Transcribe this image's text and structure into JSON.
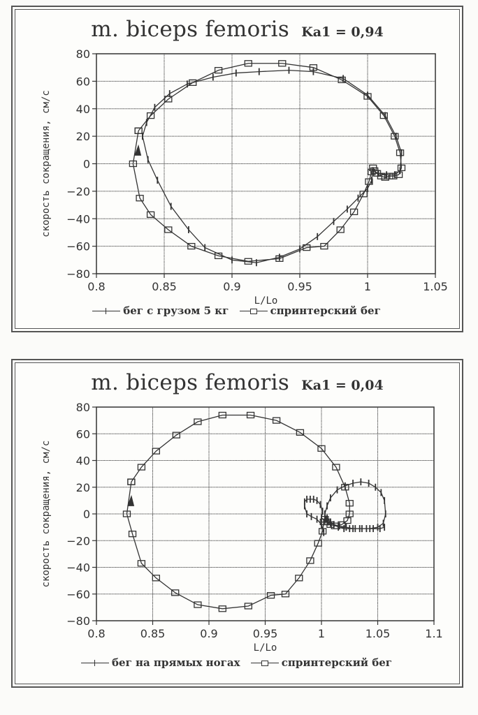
{
  "chart_data": [
    {
      "type": "line",
      "title": "m. biceps femoris",
      "annotation": "Ka1 = 0,94",
      "xlabel": "L/Lo",
      "ylabel": "скорость сокращения, см/с",
      "xlim": [
        0.8,
        1.05
      ],
      "ylim": [
        -80,
        80
      ],
      "x_ticks": [
        "0.8",
        "0.85",
        "0.9",
        "0.95",
        "1",
        "1.05"
      ],
      "y_ticks": [
        "80",
        "60",
        "40",
        "20",
        "0",
        "-20",
        "-40",
        "-60",
        "-80"
      ],
      "grid": true,
      "legend_position": "bottom",
      "series": [
        {
          "name": "бег с грузом 5 кг",
          "marker": "plus",
          "x": [
            0.834,
            0.837,
            0.843,
            0.854,
            0.867,
            0.886,
            0.903,
            0.92,
            0.942,
            0.96,
            0.982,
            1.0,
            1.013,
            1.021,
            1.025,
            1.024,
            1.02,
            1.014,
            1.008,
            1.004,
            1.003,
            1.0,
            0.993,
            0.985,
            0.975,
            0.963,
            0.95,
            0.935,
            0.918,
            0.9,
            0.88,
            0.868,
            0.855,
            0.845,
            0.838,
            0.834
          ],
          "y": [
            20,
            30,
            41,
            51,
            58,
            63,
            66,
            67,
            68,
            67,
            62,
            50,
            35,
            20,
            8,
            -5,
            -8,
            -8,
            -7,
            -5,
            -12,
            -18,
            -25,
            -33,
            -42,
            -53,
            -62,
            -68,
            -72,
            -70,
            -61,
            -48,
            -31,
            -12,
            3,
            20
          ]
        },
        {
          "name": "спринтерский бег",
          "marker": "square",
          "x": [
            0.831,
            0.84,
            0.853,
            0.871,
            0.89,
            0.912,
            0.937,
            0.96,
            0.981,
            1.0,
            1.012,
            1.02,
            1.024,
            1.025,
            1.023,
            1.019,
            1.016,
            1.013,
            1.01,
            1.007,
            1.005,
            1.004,
            1.003,
            1.001,
            0.997,
            0.99,
            0.98,
            0.968,
            0.955,
            0.935,
            0.912,
            0.89,
            0.87,
            0.853,
            0.84,
            0.832,
            0.827,
            0.831
          ],
          "y": [
            24,
            35,
            47,
            59,
            68,
            73,
            73,
            70,
            61,
            49,
            35,
            20,
            8,
            -3,
            -8,
            -9,
            -9,
            -10,
            -9,
            -7,
            -5,
            -3,
            -6,
            -13,
            -22,
            -35,
            -48,
            -60,
            -61,
            -69,
            -71,
            -67,
            -60,
            -48,
            -37,
            -25,
            0,
            24
          ]
        }
      ]
    },
    {
      "type": "line",
      "title": "m. biceps femoris",
      "annotation": "Ka1 = 0,04",
      "xlabel": "L/Lo",
      "ylabel": "скорость сокращения, см/с",
      "xlim": [
        0.8,
        1.1
      ],
      "ylim": [
        -80,
        80
      ],
      "x_ticks": [
        "0.8",
        "0.85",
        "0.9",
        "0.95",
        "1",
        "1.05",
        "1.1"
      ],
      "y_ticks": [
        "80",
        "60",
        "40",
        "20",
        "0",
        "-20",
        "-40",
        "-60",
        "-80"
      ],
      "grid": true,
      "legend_position": "bottom",
      "series": [
        {
          "name": "бег на прямых ногах",
          "marker": "plus",
          "x": [
            1.002,
            1.0,
            0.996,
            0.991,
            0.987,
            0.985,
            0.985,
            0.987,
            0.99,
            0.993,
            0.996,
            0.999,
            1.001,
            1.0,
            1.003,
            1.005,
            1.008,
            1.011,
            1.015,
            1.02,
            1.025,
            1.03,
            1.036,
            1.043,
            1.05,
            1.055,
            1.057,
            1.056,
            1.053,
            1.048,
            1.042,
            1.035,
            1.028,
            1.021,
            1.014,
            1.008,
            1.005,
            1.003,
            1.004,
            1.006,
            1.008,
            1.011,
            1.016,
            1.022,
            1.028,
            1.034,
            1.04,
            1.046,
            1.052,
            1.056
          ],
          "y": [
            -14,
            -8,
            -4,
            -2,
            0,
            6,
            9,
            11,
            11,
            11,
            10,
            7,
            2,
            -3,
            -5,
            -3,
            -6,
            -8,
            -10,
            -11,
            -11,
            -11,
            -11,
            -11,
            -10,
            -7,
            0,
            10,
            16,
            20,
            23,
            24,
            23,
            21,
            18,
            12,
            6,
            0,
            -4,
            -6,
            -7,
            -8,
            -9,
            -10,
            -11,
            -11,
            -11,
            -11,
            -11,
            -10
          ]
        },
        {
          "name": "спринтерский бег",
          "marker": "square",
          "x": [
            0.831,
            0.84,
            0.853,
            0.871,
            0.89,
            0.912,
            0.937,
            0.96,
            0.981,
            1.0,
            1.013,
            1.021,
            1.025,
            1.025,
            1.023,
            1.018,
            1.012,
            1.008,
            1.005,
            1.003,
            1.002,
            1.001,
            0.997,
            0.99,
            0.98,
            0.968,
            0.955,
            0.935,
            0.912,
            0.89,
            0.87,
            0.853,
            0.84,
            0.832,
            0.827,
            0.831
          ],
          "y": [
            24,
            35,
            47,
            59,
            69,
            74,
            74,
            70,
            61,
            49,
            35,
            20,
            8,
            0,
            -5,
            -8,
            -9,
            -8,
            -6,
            -4,
            -6,
            -13,
            -22,
            -35,
            -48,
            -60,
            -61,
            -69,
            -71,
            -68,
            -59,
            -48,
            -37,
            -15,
            0,
            24
          ]
        }
      ]
    }
  ],
  "charts": [
    {
      "title": "m. biceps femoris",
      "coef": "Ka1 = 0,94",
      "xlabel": "L/Lo",
      "ylabel": "скорость сокращения, см/с",
      "legend": [
        {
          "label": "бег с грузом 5 кг"
        },
        {
          "label": "спринтерский бег"
        }
      ]
    },
    {
      "title": "m. biceps femoris",
      "coef": "Ka1 = 0,04",
      "xlabel": "L/Lo",
      "ylabel": "скорость сокращения, см/с",
      "legend": [
        {
          "label": "бег на прямых ногах"
        },
        {
          "label": "спринтерский бег"
        }
      ]
    }
  ],
  "colors": {
    "ink": "#333333",
    "grid": "#555555",
    "paper": "#fdfdfb"
  }
}
